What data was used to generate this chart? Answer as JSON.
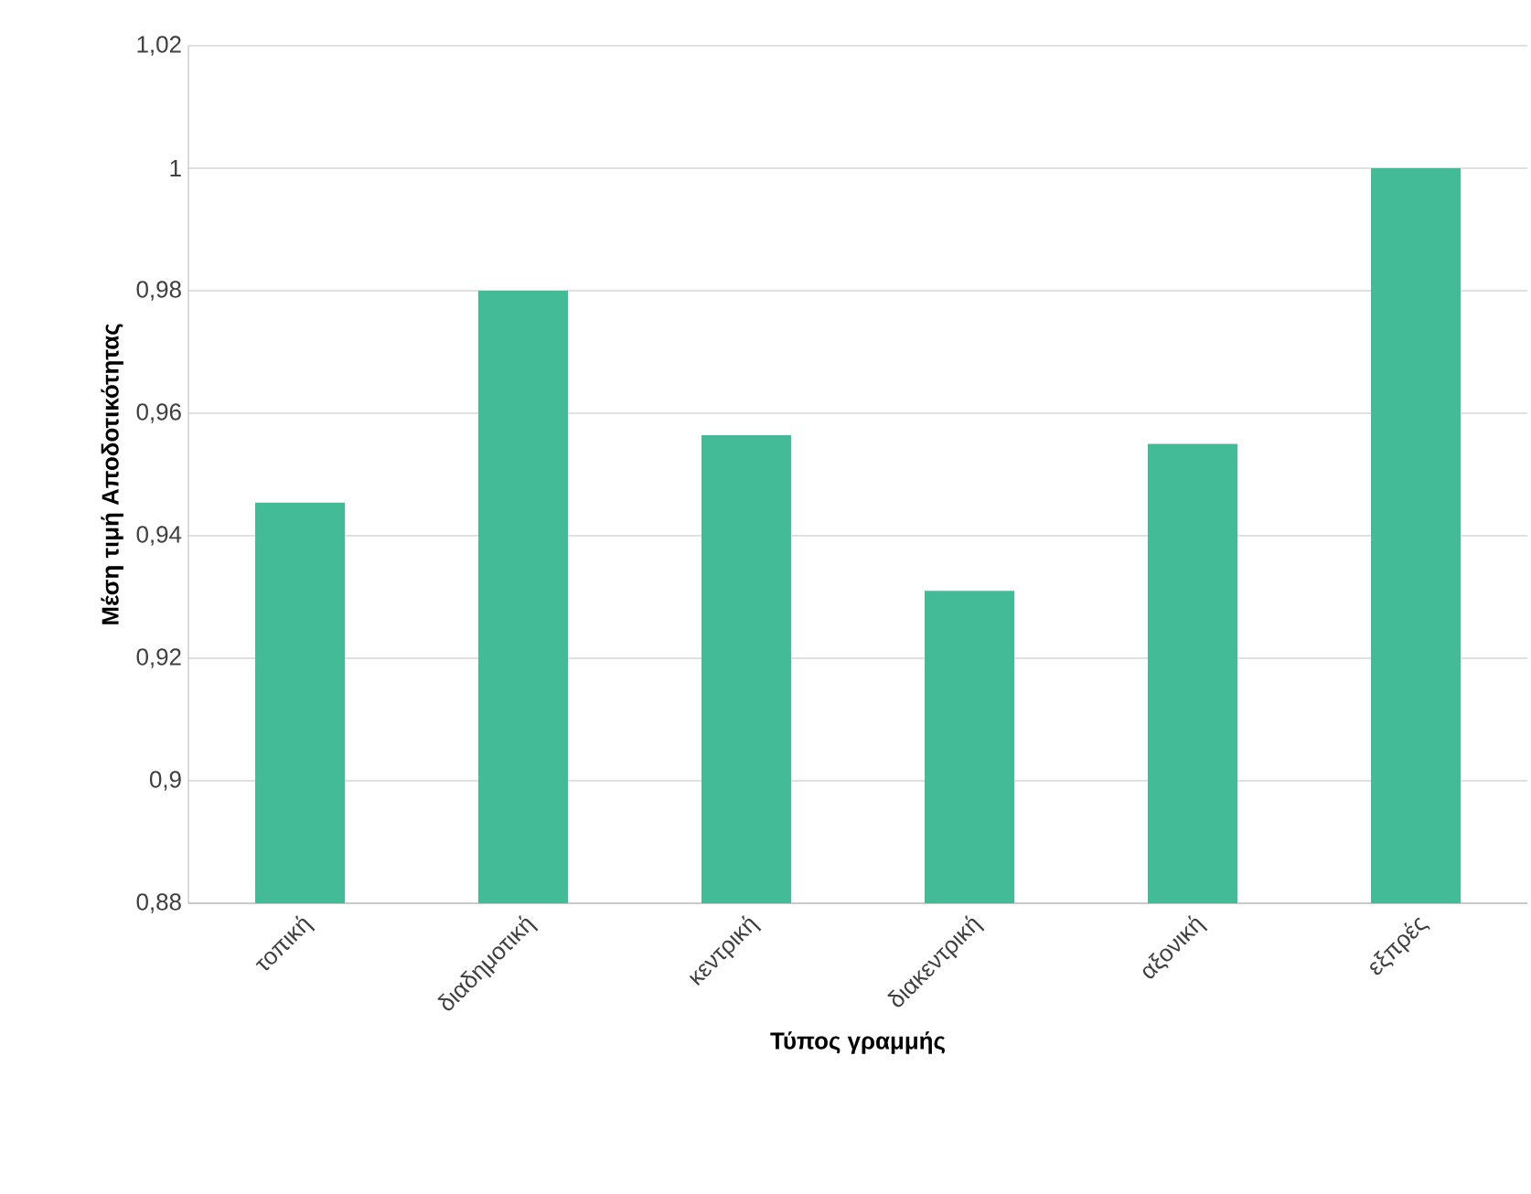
{
  "chart_data": {
    "type": "bar",
    "xlabel": "Τύπος γραμμής",
    "ylabel": "Μέση τιμή Αποδοτικότητας",
    "categories": [
      "τοπική",
      "διαδημοτική",
      "κεντρική",
      "διακεντρική",
      "αξονική",
      "εξπρές"
    ],
    "values": [
      0.9454,
      0.98,
      0.9564,
      0.931,
      0.955,
      1.0
    ],
    "color": "#43bb97",
    "ylim": [
      0.88,
      1.02
    ],
    "yticks": [
      {
        "value": 0.88,
        "label": "0,88"
      },
      {
        "value": 0.9,
        "label": "0,9"
      },
      {
        "value": 0.92,
        "label": "0,92"
      },
      {
        "value": 0.94,
        "label": "0,94"
      },
      {
        "value": 0.96,
        "label": "0,96"
      },
      {
        "value": 0.98,
        "label": "0,98"
      },
      1,
      {
        "value": 1.02,
        "label": "1,02"
      }
    ],
    "grid": "y"
  }
}
